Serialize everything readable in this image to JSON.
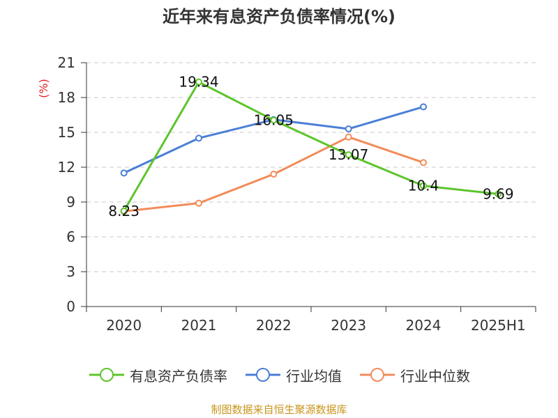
{
  "chart_data": {
    "type": "line",
    "title": "近年来有息资产负债率情况(%)",
    "ylabel": "(%)",
    "xlabel": "",
    "categories": [
      "2020",
      "2021",
      "2022",
      "2023",
      "2024",
      "2025H1"
    ],
    "ylim": [
      0,
      21
    ],
    "yticks": [
      0,
      3,
      6,
      9,
      12,
      15,
      18,
      21
    ],
    "grid": "horizontal-dashed",
    "legend_position": "bottom",
    "series": [
      {
        "name": "有息资产负债率",
        "color": "#5ec42c",
        "values": [
          8.23,
          19.34,
          16.05,
          13.07,
          10.4,
          9.69
        ],
        "data_labels": [
          "8.23",
          "19.34",
          "16.05",
          "13.07",
          "10.4",
          "9.69"
        ]
      },
      {
        "name": "行业均值",
        "color": "#4a7fd6",
        "values": [
          11.5,
          14.5,
          16.1,
          15.3,
          17.2,
          null
        ],
        "data_labels": []
      },
      {
        "name": "行业中位数",
        "color": "#f28c5a",
        "values": [
          8.2,
          8.9,
          11.4,
          14.6,
          12.4,
          null
        ],
        "data_labels": []
      }
    ],
    "source": "制图数据来自恒生聚源数据库"
  }
}
